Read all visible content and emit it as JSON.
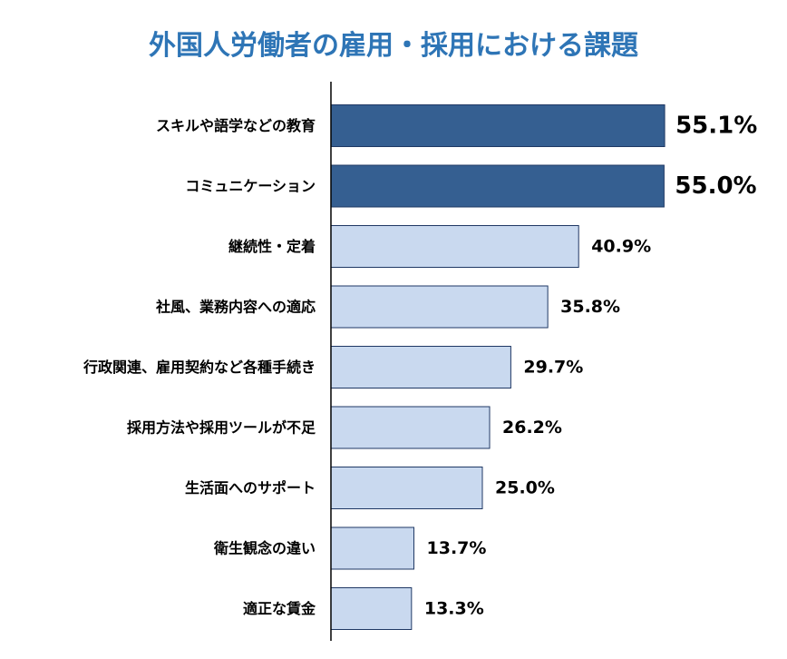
{
  "chart_data": {
    "type": "bar",
    "orientation": "horizontal",
    "title": "外国人労働者の雇用・採用における課題",
    "categories": [
      "スキルや語学などの教育",
      "コミュニケーション",
      "継続性・定着",
      "社風、業務内容への適応",
      "行政関連、雇用契約など各種手続き",
      "採用方法や採用ツールが不足",
      "生活面へのサポート",
      "衛生観念の違い",
      "適正な賃金"
    ],
    "values": [
      55.1,
      55.0,
      40.9,
      35.8,
      29.7,
      26.2,
      25.0,
      13.7,
      13.3
    ],
    "value_labels": [
      "55.1%",
      "55.0%",
      "40.9%",
      "35.8%",
      "29.7%",
      "26.2%",
      "25.0%",
      "13.7%",
      "13.3%"
    ],
    "highlighted": [
      true,
      true,
      false,
      false,
      false,
      false,
      false,
      false,
      false
    ],
    "colors": {
      "highlight": "#355f91",
      "normal": "#c9d9ef",
      "border": "#1f3864",
      "title": "#2e75b6"
    },
    "xlim": [
      0,
      60
    ],
    "grid": false,
    "legend": "none"
  }
}
